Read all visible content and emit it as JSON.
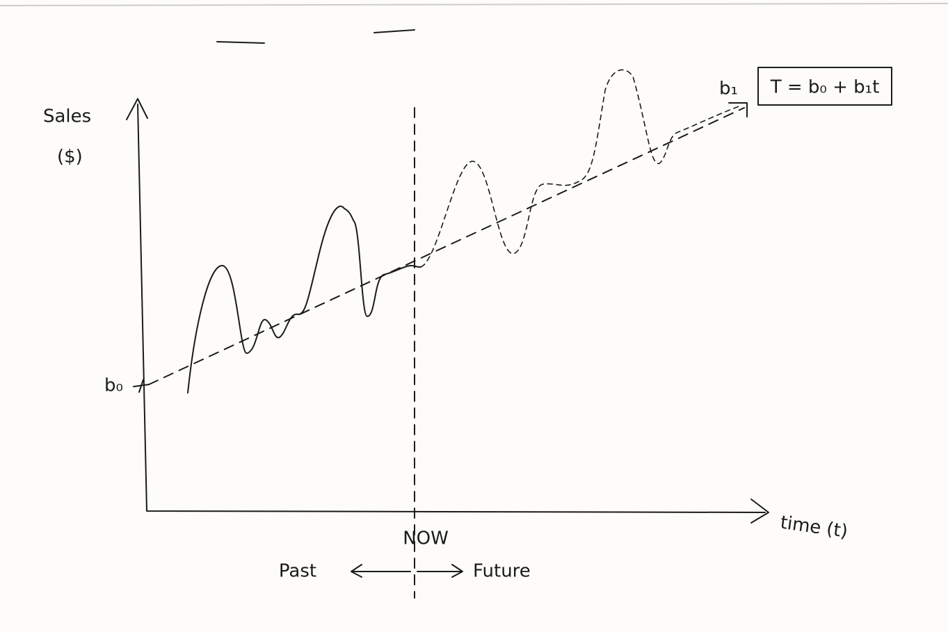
{
  "axes": {
    "y_label": [
      "Sales",
      "($)"
    ],
    "x_label": "time (t)"
  },
  "markers": {
    "intercept": "b₀",
    "slope": "b₁"
  },
  "equation": "T = b₀ + b₁t",
  "divider": {
    "label": "NOW",
    "left": "Past",
    "right": "Future"
  }
}
